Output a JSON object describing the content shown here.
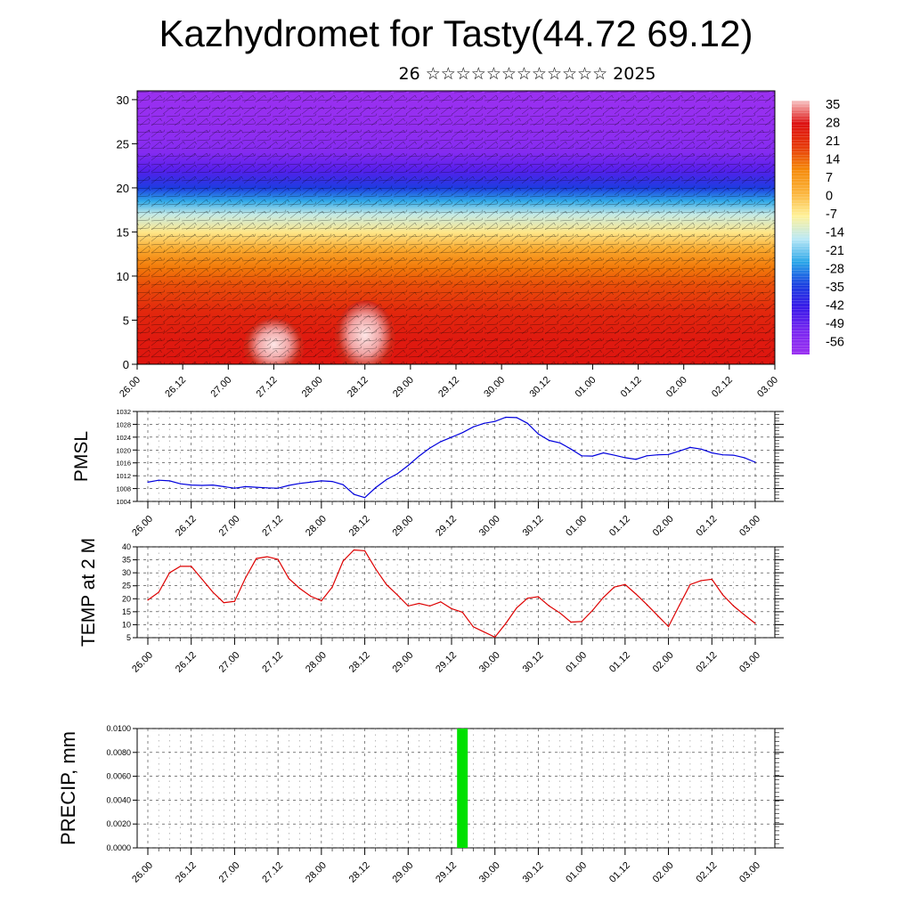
{
  "header": {
    "title": "Kazhydromet for Tasty(44.72 69.12)",
    "subtitle": "26 ☆☆☆☆☆☆☆☆☆☆☆☆ 2025"
  },
  "colors": {
    "pmsl_line": "#0000dd",
    "temp_line": "#dd0000",
    "precip_bar": "#00e000",
    "colorbar": [
      "#f7c4c4",
      "#dd1010",
      "#e63a0a",
      "#f58a0a",
      "#fbb43c",
      "#fff29a",
      "#b9e8f6",
      "#2aa6e8",
      "#1a3fe0",
      "#3a18e8",
      "#7a28f0",
      "#9a30f0"
    ]
  },
  "chart_data": [
    {
      "id": "cross_section",
      "type": "heatmap",
      "title": "",
      "xlabel": "",
      "ylabel": "",
      "ylim": [
        0,
        31
      ],
      "yticks": [
        0,
        5,
        10,
        15,
        20,
        25,
        30
      ],
      "xtick_labels": [
        "26.00",
        "26.12",
        "27.00",
        "27.12",
        "28.00",
        "28.12",
        "29.00",
        "29.12",
        "30.00",
        "30.12",
        "01.00",
        "01.12",
        "02.00",
        "02.12",
        "03.00"
      ],
      "colorbar_labels": [
        "35",
        "28",
        "21",
        "14",
        "7",
        "0",
        "-7",
        "-14",
        "-21",
        "-28",
        "-35",
        "-42",
        "-49",
        "-56"
      ],
      "color_levels": [
        {
          "y": 0,
          "value": 28
        },
        {
          "y": 3,
          "value": 27
        },
        {
          "y": 6,
          "value": 24
        },
        {
          "y": 9,
          "value": 18
        },
        {
          "y": 11,
          "value": 13
        },
        {
          "y": 13,
          "value": 5
        },
        {
          "y": 15,
          "value": -5
        },
        {
          "y": 17,
          "value": -14
        },
        {
          "y": 18.5,
          "value": -24
        },
        {
          "y": 20,
          "value": -34
        },
        {
          "y": 22,
          "value": -46
        },
        {
          "y": 24,
          "value": -54
        },
        {
          "y": 27,
          "value": -58
        },
        {
          "y": 31,
          "value": -60
        }
      ],
      "warm_cores": [
        {
          "x": "27.12",
          "top": 5,
          "value": 35
        },
        {
          "x": "28.12",
          "top": 7,
          "value": 38
        }
      ]
    },
    {
      "id": "pmsl",
      "type": "line",
      "ylabel": "PMSL",
      "ylim": [
        1004,
        1032
      ],
      "yticks": [
        "1004",
        "1008",
        "1012",
        "1016",
        "1020",
        "1024",
        "1028",
        "1032"
      ],
      "xtick_labels": [
        "26.00",
        "26.12",
        "27.00",
        "27.12",
        "28.00",
        "28.12",
        "29.00",
        "29.12",
        "30.00",
        "30.12",
        "01.00",
        "01.12",
        "02.00",
        "02.12",
        "03.00"
      ],
      "x": [
        0,
        0.25,
        0.5,
        0.75,
        1,
        1.25,
        1.5,
        1.75,
        2,
        2.25,
        2.5,
        2.75,
        3,
        3.25,
        3.5,
        3.75,
        4,
        4.25,
        4.5,
        4.75,
        5,
        5.25,
        5.5,
        5.75,
        6,
        6.25,
        6.5,
        6.75,
        7,
        7.25,
        7.5,
        7.75,
        8,
        8.25,
        8.5,
        8.75,
        9,
        9.25,
        9.5,
        9.75,
        10,
        10.25,
        10.5,
        10.75,
        11,
        11.25,
        11.5,
        11.75,
        12,
        12.25,
        12.5,
        12.75,
        13,
        13.25,
        13.5,
        13.75,
        14
      ],
      "values": [
        1010,
        1010.6,
        1010.4,
        1009.5,
        1009.1,
        1009.0,
        1009.1,
        1008.6,
        1008.1,
        1008.6,
        1008.4,
        1008.2,
        1008.1,
        1009.0,
        1009.6,
        1010.0,
        1010.4,
        1010.2,
        1009.2,
        1006.2,
        1005.2,
        1008.3,
        1010.8,
        1012.6,
        1015.2,
        1018.1,
        1020.6,
        1022.6,
        1024.0,
        1025.4,
        1027.2,
        1028.3,
        1028.9,
        1030.2,
        1030.1,
        1028.3,
        1025.0,
        1023.0,
        1022.2,
        1020.3,
        1018.2,
        1018.1,
        1019.1,
        1018.4,
        1017.6,
        1017.1,
        1018.2,
        1018.5,
        1018.6,
        1019.7,
        1020.8,
        1020.3,
        1019.1,
        1018.5,
        1018.4,
        1017.6,
        1016.2
      ]
    },
    {
      "id": "temp2m",
      "type": "line",
      "ylabel": "TEMP at 2 M",
      "ylim": [
        5,
        40
      ],
      "yticks": [
        "5",
        "10",
        "15",
        "20",
        "25",
        "30",
        "35",
        "40"
      ],
      "xtick_labels": [
        "26.00",
        "26.12",
        "27.00",
        "27.12",
        "28.00",
        "28.12",
        "29.00",
        "29.12",
        "30.00",
        "30.12",
        "01.00",
        "01.12",
        "02.00",
        "02.12",
        "03.00"
      ],
      "x": [
        0,
        0.25,
        0.5,
        0.75,
        1,
        1.25,
        1.5,
        1.75,
        2,
        2.25,
        2.5,
        2.75,
        3,
        3.25,
        3.5,
        3.75,
        4,
        4.25,
        4.5,
        4.75,
        5,
        5.25,
        5.5,
        5.75,
        6,
        6.25,
        6.5,
        6.75,
        7,
        7.25,
        7.5,
        7.75,
        8,
        8.25,
        8.5,
        8.75,
        9,
        9.25,
        9.5,
        9.75,
        10,
        10.25,
        10.5,
        10.75,
        11,
        11.25,
        11.5,
        11.75,
        12,
        12.25,
        12.5,
        12.75,
        13,
        13.25,
        13.5,
        13.75,
        14
      ],
      "values": [
        19.5,
        22.5,
        30,
        32.5,
        32.5,
        27.5,
        22.5,
        18.5,
        19,
        28,
        35.5,
        36.2,
        35.2,
        27.8,
        24,
        21,
        19.2,
        24.5,
        34.5,
        38.8,
        38.5,
        31.5,
        25.5,
        21.5,
        17.2,
        18.2,
        17.2,
        18.8,
        16.2,
        14.8,
        9.2,
        7.2,
        5.2,
        10.5,
        16.5,
        20.2,
        20.8,
        17.2,
        14.5,
        11,
        11.2,
        15.5,
        20.5,
        24.5,
        25.5,
        21.8,
        17.8,
        13.5,
        9.3,
        17.5,
        25.5,
        27,
        27.5,
        21.5,
        17.2,
        13.8,
        10.5
      ]
    },
    {
      "id": "precip",
      "type": "bar",
      "ylabel": "PRECIP, mm",
      "ylim": [
        0,
        0.01
      ],
      "yticks": [
        "0.0000",
        "0.0020",
        "0.0040",
        "0.0060",
        "0.0080",
        "0.0100"
      ],
      "xtick_labels": [
        "26.00",
        "26.12",
        "27.00",
        "27.12",
        "28.00",
        "28.12",
        "29.00",
        "29.12",
        "30.00",
        "30.12",
        "01.00",
        "01.12",
        "02.00",
        "02.12",
        "03.00"
      ],
      "bars": [
        {
          "x": 7.25,
          "value": 0.01
        }
      ]
    }
  ]
}
